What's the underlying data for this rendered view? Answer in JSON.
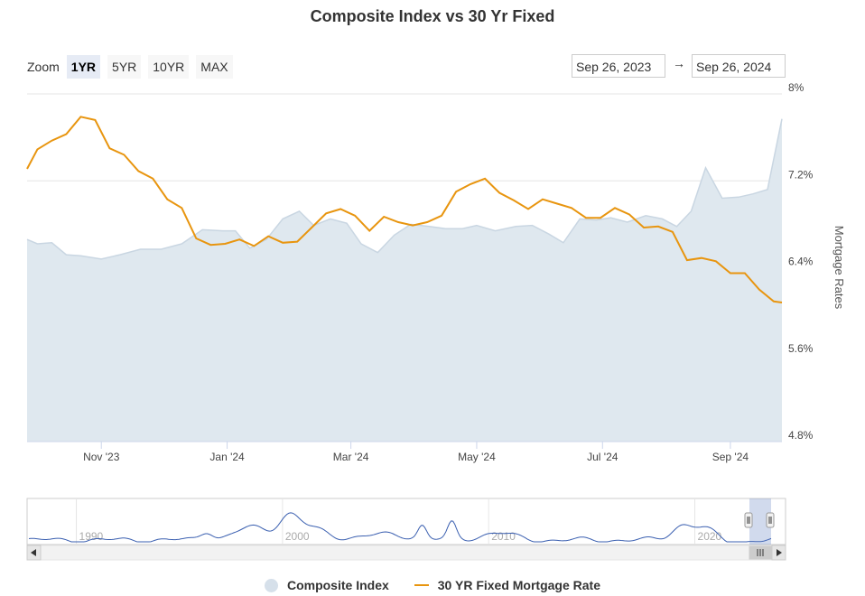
{
  "title": "Composite Index vs 30 Yr Fixed",
  "zoom": {
    "label": "Zoom",
    "buttons": [
      "1YR",
      "5YR",
      "10YR",
      "MAX"
    ],
    "selected": "1YR"
  },
  "range": {
    "from": "Sep 26, 2023",
    "arrow": "→",
    "to": "Sep 26, 2024"
  },
  "colors": {
    "composite_fill": "#dfe8ef",
    "composite_line": "#c9d6e2",
    "mortgage": "#e8950f",
    "navigator": "#3a5fb0",
    "grid": "#e6e6e6"
  },
  "chart_data": {
    "type": "line",
    "title": "Composite Index vs 30 Yr Fixed",
    "x_ticks": [
      "Nov '23",
      "Jan '24",
      "Mar '24",
      "May '24",
      "Jul '24",
      "Sep '24"
    ],
    "x_tick_dates": [
      "2023-11-01",
      "2024-01-01",
      "2024-03-01",
      "2024-05-01",
      "2024-07-01",
      "2024-09-01"
    ],
    "x_range": [
      "2023-09-26",
      "2024-09-26"
    ],
    "y_right": {
      "label": "Mortgage Rates",
      "ticks": [
        "8%",
        "7.2%",
        "6.4%",
        "5.6%",
        "4.8%"
      ],
      "tick_values": [
        8.0,
        7.2,
        6.4,
        5.6,
        4.8
      ],
      "ylim": [
        4.8,
        8.0
      ]
    },
    "grid": true,
    "legend_position": "bottom",
    "series": [
      {
        "name": "Composite Index",
        "type": "area",
        "x": [
          "2023-09-26",
          "2023-10-01",
          "2023-10-08",
          "2023-10-15",
          "2023-10-22",
          "2023-11-01",
          "2023-11-10",
          "2023-11-20",
          "2023-11-30",
          "2023-12-10",
          "2023-12-20",
          "2023-12-30",
          "2024-01-05",
          "2024-01-12",
          "2024-01-20",
          "2024-01-28",
          "2024-02-05",
          "2024-02-12",
          "2024-02-20",
          "2024-02-28",
          "2024-03-06",
          "2024-03-14",
          "2024-03-22",
          "2024-03-30",
          "2024-04-08",
          "2024-04-16",
          "2024-04-24",
          "2024-05-01",
          "2024-05-10",
          "2024-05-20",
          "2024-05-28",
          "2024-06-05",
          "2024-06-12",
          "2024-06-20",
          "2024-06-28",
          "2024-07-05",
          "2024-07-13",
          "2024-07-22",
          "2024-07-30",
          "2024-08-06",
          "2024-08-13",
          "2024-08-20",
          "2024-08-28",
          "2024-09-05",
          "2024-09-12",
          "2024-09-19",
          "2024-09-26"
        ],
        "values": [
          6.66,
          6.62,
          6.63,
          6.52,
          6.51,
          6.48,
          6.52,
          6.57,
          6.57,
          6.62,
          6.75,
          6.74,
          6.74,
          6.58,
          6.66,
          6.85,
          6.92,
          6.79,
          6.85,
          6.81,
          6.62,
          6.54,
          6.7,
          6.8,
          6.78,
          6.76,
          6.76,
          6.79,
          6.74,
          6.78,
          6.79,
          6.71,
          6.63,
          6.85,
          6.84,
          6.86,
          6.82,
          6.88,
          6.85,
          6.78,
          6.92,
          7.32,
          7.04,
          7.05,
          7.08,
          7.12,
          7.77
        ]
      },
      {
        "name": "30 YR Fixed Mortgage Rate",
        "type": "line",
        "x": [
          "2023-09-26",
          "2023-10-01",
          "2023-10-08",
          "2023-10-15",
          "2023-10-22",
          "2023-10-29",
          "2023-11-05",
          "2023-11-12",
          "2023-11-19",
          "2023-11-26",
          "2023-12-03",
          "2023-12-10",
          "2023-12-17",
          "2023-12-24",
          "2023-12-31",
          "2024-01-07",
          "2024-01-14",
          "2024-01-21",
          "2024-01-28",
          "2024-02-04",
          "2024-02-11",
          "2024-02-18",
          "2024-02-25",
          "2024-03-03",
          "2024-03-10",
          "2024-03-17",
          "2024-03-24",
          "2024-03-31",
          "2024-04-07",
          "2024-04-14",
          "2024-04-21",
          "2024-04-28",
          "2024-05-05",
          "2024-05-12",
          "2024-05-19",
          "2024-05-26",
          "2024-06-02",
          "2024-06-09",
          "2024-06-16",
          "2024-06-23",
          "2024-06-30",
          "2024-07-07",
          "2024-07-14",
          "2024-07-21",
          "2024-07-28",
          "2024-08-04",
          "2024-08-11",
          "2024-08-18",
          "2024-08-25",
          "2024-09-01",
          "2024-09-08",
          "2024-09-15",
          "2024-09-22",
          "2024-09-26"
        ],
        "values": [
          7.31,
          7.49,
          7.57,
          7.63,
          7.79,
          7.76,
          7.5,
          7.44,
          7.29,
          7.22,
          7.03,
          6.95,
          6.67,
          6.61,
          6.62,
          6.66,
          6.6,
          6.69,
          6.63,
          6.64,
          6.77,
          6.9,
          6.94,
          6.88,
          6.74,
          6.87,
          6.82,
          6.79,
          6.82,
          6.88,
          7.1,
          7.17,
          7.22,
          7.09,
          7.02,
          6.94,
          7.03,
          6.99,
          6.95,
          6.86,
          6.86,
          6.95,
          6.89,
          6.77,
          6.78,
          6.73,
          6.47,
          6.49,
          6.46,
          6.35,
          6.35,
          6.2,
          6.09,
          6.08
        ]
      }
    ],
    "navigator": {
      "x_ticks": [
        "1990",
        "2000",
        "2010",
        "2020"
      ]
    }
  },
  "legend": [
    {
      "name": "Composite Index",
      "symbol": "circle"
    },
    {
      "name": "30 YR Fixed Mortgage Rate",
      "symbol": "line"
    }
  ]
}
